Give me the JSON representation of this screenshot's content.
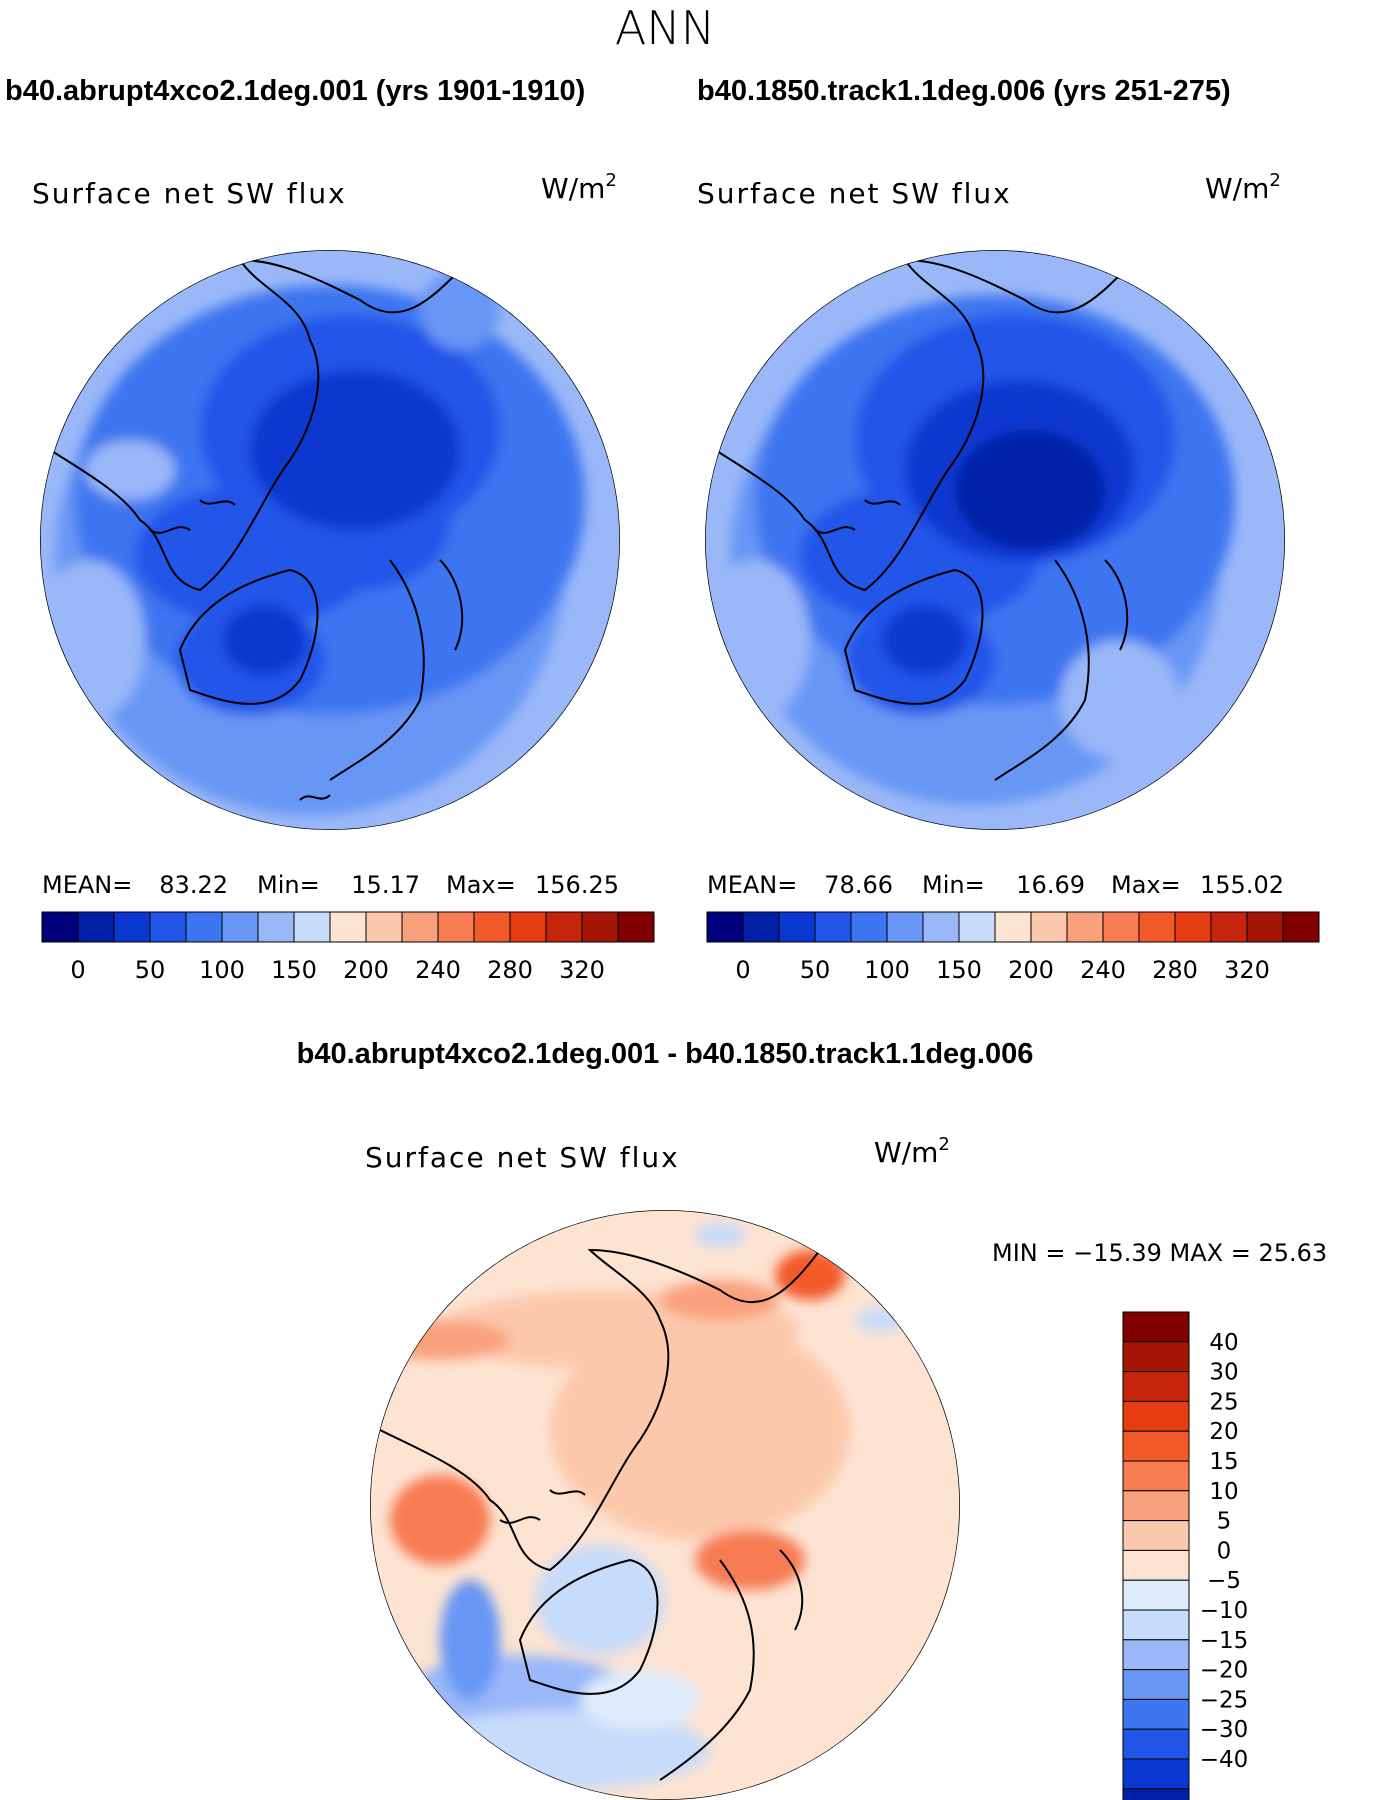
{
  "page_title": "ANN",
  "colors": {
    "blue": [
      "#00007f",
      "#0020a8",
      "#0a37d0",
      "#2255e8",
      "#3d74f0",
      "#6896f5",
      "#9ab8f8",
      "#c7dbfa",
      "#deebfc"
    ],
    "red": [
      "#fde3d2",
      "#fcc8ac",
      "#f9a07d",
      "#f77c52",
      "#f35a2a",
      "#e63c12",
      "#c4250c",
      "#a51506",
      "#800000"
    ]
  },
  "panels": [
    {
      "header": "b40.abrupt4xco2.1deg.001 (yrs 1901-1910)",
      "variable": "Surface net SW flux",
      "unit": "W/m",
      "unit_exp": "2",
      "stats": {
        "mean_label": "MEAN=",
        "mean": "83.22",
        "min_label": "Min=",
        "min": "15.17",
        "max_label": "Max=",
        "max": "156.25"
      },
      "colorbar_ticks": [
        "0",
        "50",
        "100",
        "150",
        "200",
        "240",
        "280",
        "320"
      ]
    },
    {
      "header": "b40.1850.track1.1deg.006 (yrs 251-275)",
      "variable": "Surface net SW flux",
      "unit": "W/m",
      "unit_exp": "2",
      "stats": {
        "mean_label": "MEAN=",
        "mean": "78.66",
        "min_label": "Min=",
        "min": "16.69",
        "max_label": "Max=",
        "max": "155.02"
      },
      "colorbar_ticks": [
        "0",
        "50",
        "100",
        "150",
        "200",
        "240",
        "280",
        "320"
      ]
    }
  ],
  "diff": {
    "header": "b40.abrupt4xco2.1deg.001 - b40.1850.track1.1deg.006",
    "variable": "Surface net SW flux",
    "unit": "W/m",
    "unit_exp": "2",
    "minmax": "MIN = −15.39 MAX =   25.63",
    "colorbar_labels": [
      "40",
      "30",
      "25",
      "20",
      "15",
      "10",
      "5",
      "0",
      "−5",
      "−10",
      "−15",
      "−20",
      "−25",
      "−30",
      "−40"
    ]
  }
}
